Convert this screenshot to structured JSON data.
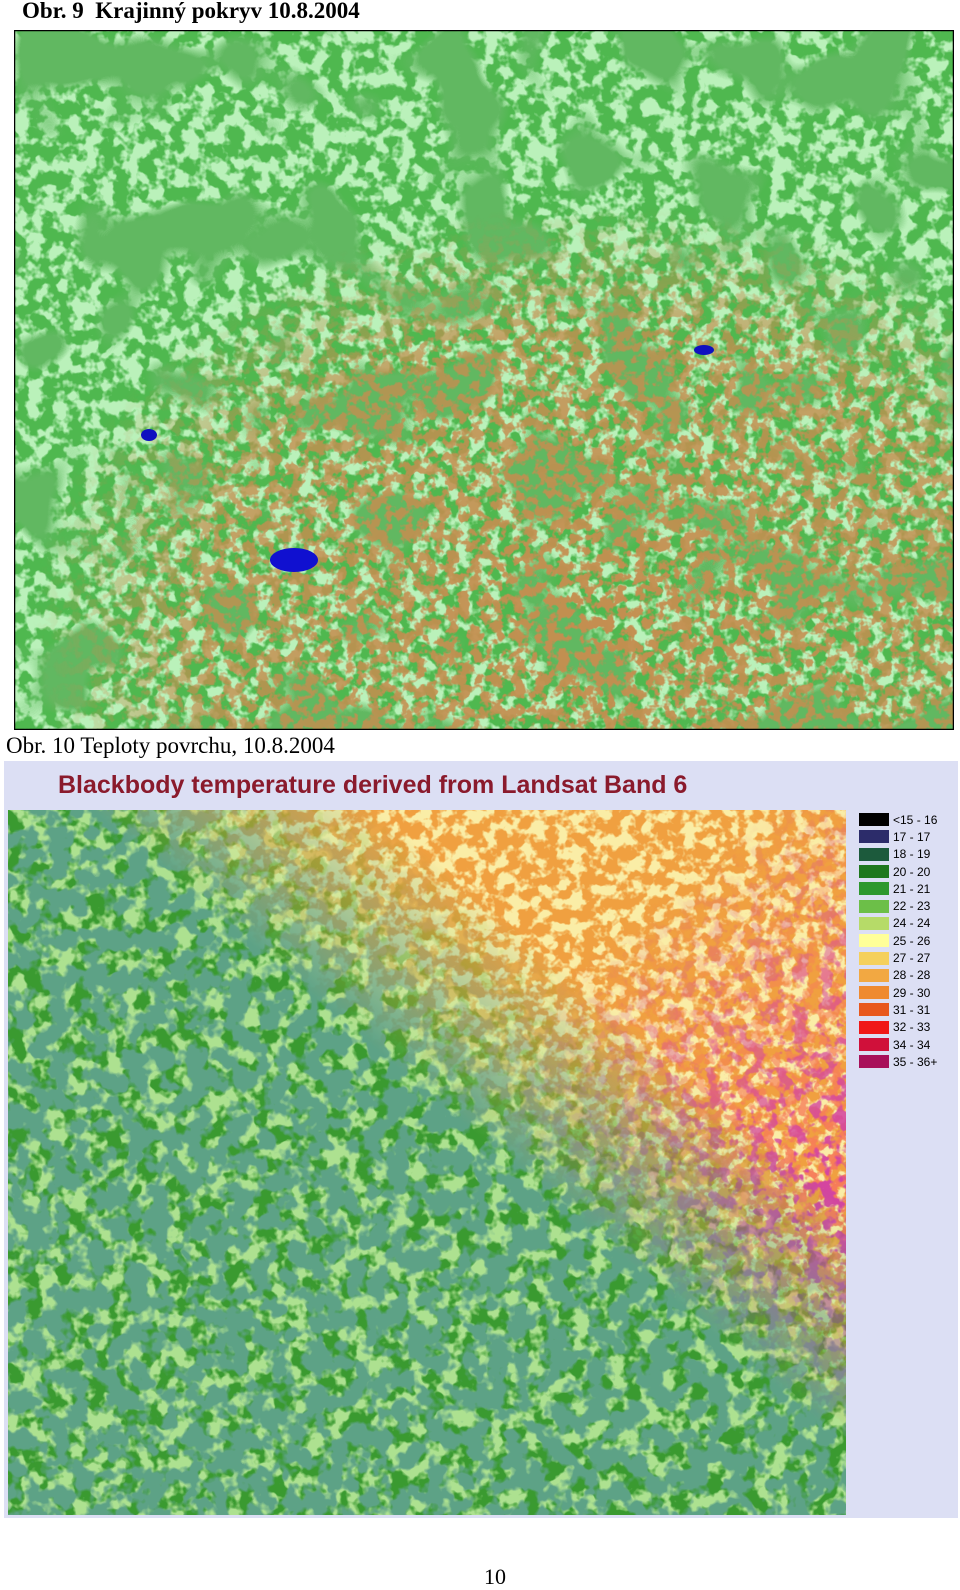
{
  "figures": [
    {
      "caption": "Obr. 9  Krajinný pokryv 10.8.2004"
    },
    {
      "caption": "Obr. 10 Teploty povrchu, 10.8.2004",
      "title": "Blackbody temperature derived from Landsat Band 6",
      "legend": [
        {
          "label": "<15 - 16",
          "color": "#000000"
        },
        {
          "label": "17 - 17",
          "color": "#2c2c6a"
        },
        {
          "label": "18 - 19",
          "color": "#1c5a3c"
        },
        {
          "label": "20 - 20",
          "color": "#1e781e"
        },
        {
          "label": "21 - 21",
          "color": "#2e982e"
        },
        {
          "label": "22 - 23",
          "color": "#6cbf48"
        },
        {
          "label": "24 - 24",
          "color": "#b6db68"
        },
        {
          "label": "25 - 26",
          "color": "#ffff99"
        },
        {
          "label": "27 - 27",
          "color": "#f5d05c"
        },
        {
          "label": "28 - 28",
          "color": "#f2a842"
        },
        {
          "label": "29 - 30",
          "color": "#ef8a30"
        },
        {
          "label": "31 - 31",
          "color": "#e8581e"
        },
        {
          "label": "32 - 33",
          "color": "#f01818"
        },
        {
          "label": "34 - 34",
          "color": "#d0103a"
        },
        {
          "label": "35 - 36+",
          "color": "#a8105a"
        }
      ]
    }
  ],
  "page_number": "10"
}
